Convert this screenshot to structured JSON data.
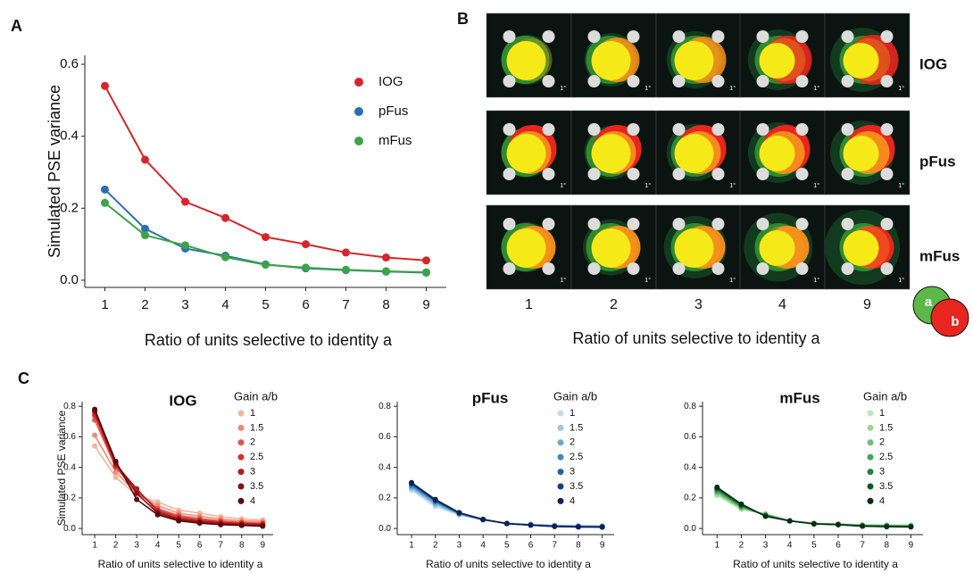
{
  "panels": {
    "a": "A",
    "b": "B",
    "c": "C"
  },
  "chart_data": [
    {
      "type": "line",
      "ylabel": "Simulated PSE variance",
      "xlabel": "Ratio of units selective to identity a",
      "x": [
        1,
        2,
        3,
        4,
        5,
        6,
        7,
        8,
        9
      ],
      "xlim": [
        0.5,
        9.5
      ],
      "xticks": [
        1,
        2,
        3,
        4,
        5,
        6,
        7,
        8,
        9
      ],
      "ylim": [
        -0.02,
        0.625
      ],
      "yticks": [
        {
          "value": 0,
          "label": "0.0"
        },
        0.2,
        0.4,
        0.6
      ],
      "series": [
        {
          "name": "IOG",
          "color": "#d7262b",
          "values": [
            0.54,
            0.335,
            0.218,
            0.173,
            0.12,
            0.1,
            0.077,
            0.063,
            0.055
          ]
        },
        {
          "name": "pFus",
          "color": "#2c6fb0",
          "values": [
            0.252,
            0.143,
            0.088,
            0.068,
            0.044,
            0.033,
            0.028,
            0.024,
            0.021
          ]
        },
        {
          "name": "mFus",
          "color": "#3ca346",
          "values": [
            0.215,
            0.125,
            0.097,
            0.064,
            0.043,
            0.035,
            0.029,
            0.025,
            0.022
          ]
        }
      ]
    },
    {
      "type": "line",
      "title": "IOG",
      "legend_title": "Gain a/b",
      "ylabel": "Simulated PSE variance",
      "xlabel": "Ratio of units selective to identity a",
      "x": [
        1,
        2,
        3,
        4,
        5,
        6,
        7,
        8,
        9
      ],
      "xlim": [
        0.4,
        9.5
      ],
      "xticks": [
        1,
        2,
        3,
        4,
        5,
        6,
        7,
        8,
        9
      ],
      "ylim": [
        -0.04,
        0.83
      ],
      "yticks": [
        {
          "value": 0,
          "label": "0.0"
        },
        0.2,
        0.4,
        0.6,
        0.8
      ],
      "series": [
        {
          "name": "1",
          "color": "#f6b49c",
          "values": [
            0.54,
            0.335,
            0.218,
            0.173,
            0.12,
            0.1,
            0.077,
            0.063,
            0.055
          ]
        },
        {
          "name": "1.5",
          "color": "#f08a74",
          "values": [
            0.61,
            0.37,
            0.23,
            0.15,
            0.1,
            0.08,
            0.062,
            0.05,
            0.045
          ]
        },
        {
          "name": "2",
          "color": "#e65548",
          "values": [
            0.71,
            0.4,
            0.24,
            0.13,
            0.085,
            0.065,
            0.05,
            0.04,
            0.035
          ]
        },
        {
          "name": "2.5",
          "color": "#d4302c",
          "values": [
            0.74,
            0.41,
            0.25,
            0.12,
            0.075,
            0.055,
            0.042,
            0.034,
            0.03
          ]
        },
        {
          "name": "3",
          "color": "#b01b1f",
          "values": [
            0.76,
            0.42,
            0.26,
            0.11,
            0.065,
            0.047,
            0.036,
            0.029,
            0.025
          ]
        },
        {
          "name": "3.5",
          "color": "#861016",
          "values": [
            0.77,
            0.43,
            0.23,
            0.1,
            0.058,
            0.04,
            0.03,
            0.024,
            0.02
          ]
        },
        {
          "name": "4",
          "color": "#5a0a10",
          "values": [
            0.78,
            0.44,
            0.19,
            0.09,
            0.05,
            0.035,
            0.025,
            0.02,
            0.015
          ]
        }
      ]
    },
    {
      "type": "line",
      "title": "pFus",
      "legend_title": "Gain a/b",
      "xlabel": "Ratio of units selective to identity a",
      "x": [
        1,
        2,
        3,
        4,
        5,
        6,
        7,
        8,
        9
      ],
      "xlim": [
        0.4,
        9.5
      ],
      "xticks": [
        1,
        2,
        3,
        4,
        5,
        6,
        7,
        8,
        9
      ],
      "ylim": [
        -0.04,
        0.83
      ],
      "yticks": [
        {
          "value": 0,
          "label": "0.0"
        },
        0.2,
        0.4,
        0.6,
        0.8
      ],
      "series": [
        {
          "name": "1",
          "color": "#c4daef",
          "values": [
            0.25,
            0.143,
            0.088,
            0.055,
            0.035,
            0.027,
            0.022,
            0.02,
            0.019
          ]
        },
        {
          "name": "1.5",
          "color": "#9dc6e2",
          "values": [
            0.26,
            0.155,
            0.092,
            0.056,
            0.034,
            0.026,
            0.02,
            0.017,
            0.016
          ]
        },
        {
          "name": "2",
          "color": "#6aa8d6",
          "values": [
            0.27,
            0.165,
            0.095,
            0.057,
            0.033,
            0.025,
            0.018,
            0.015,
            0.014
          ]
        },
        {
          "name": "2.5",
          "color": "#3f88c4",
          "values": [
            0.28,
            0.175,
            0.098,
            0.058,
            0.033,
            0.024,
            0.016,
            0.013,
            0.012
          ]
        },
        {
          "name": "3",
          "color": "#2166ac",
          "values": [
            0.29,
            0.18,
            0.1,
            0.059,
            0.032,
            0.023,
            0.015,
            0.012,
            0.011
          ]
        },
        {
          "name": "3.5",
          "color": "#143d82",
          "values": [
            0.295,
            0.185,
            0.102,
            0.06,
            0.032,
            0.022,
            0.014,
            0.011,
            0.01
          ]
        },
        {
          "name": "4",
          "color": "#0b2250",
          "values": [
            0.3,
            0.19,
            0.104,
            0.06,
            0.032,
            0.022,
            0.013,
            0.01,
            0.009
          ]
        }
      ]
    },
    {
      "type": "line",
      "title": "mFus",
      "legend_title": "Gain a/b",
      "xlabel": "Ratio of units selective to identity a",
      "x": [
        1,
        2,
        3,
        4,
        5,
        6,
        7,
        8,
        9
      ],
      "xlim": [
        0.4,
        9.5
      ],
      "xticks": [
        1,
        2,
        3,
        4,
        5,
        6,
        7,
        8,
        9
      ],
      "ylim": [
        -0.04,
        0.83
      ],
      "yticks": [
        {
          "value": 0,
          "label": "0.0"
        },
        0.2,
        0.4,
        0.6,
        0.8
      ],
      "series": [
        {
          "name": "1",
          "color": "#c4e6bd",
          "values": [
            0.215,
            0.125,
            0.097,
            0.05,
            0.035,
            0.03,
            0.025,
            0.024,
            0.022
          ]
        },
        {
          "name": "1.5",
          "color": "#9fd498",
          "values": [
            0.225,
            0.13,
            0.094,
            0.05,
            0.034,
            0.029,
            0.023,
            0.021,
            0.02
          ]
        },
        {
          "name": "2",
          "color": "#70bd72",
          "values": [
            0.235,
            0.137,
            0.091,
            0.05,
            0.033,
            0.028,
            0.021,
            0.019,
            0.018
          ]
        },
        {
          "name": "2.5",
          "color": "#41a65a",
          "values": [
            0.245,
            0.143,
            0.088,
            0.05,
            0.032,
            0.027,
            0.019,
            0.017,
            0.016
          ]
        },
        {
          "name": "3",
          "color": "#238443",
          "values": [
            0.255,
            0.15,
            0.085,
            0.05,
            0.031,
            0.026,
            0.018,
            0.015,
            0.014
          ]
        },
        {
          "name": "3.5",
          "color": "#0e5a2e",
          "values": [
            0.262,
            0.155,
            0.082,
            0.05,
            0.03,
            0.025,
            0.016,
            0.013,
            0.012
          ]
        },
        {
          "name": "4",
          "color": "#0a2d16",
          "values": [
            0.27,
            0.16,
            0.08,
            0.05,
            0.03,
            0.025,
            0.015,
            0.012,
            0.01
          ]
        }
      ]
    }
  ],
  "panel_b": {
    "columns": [
      "1",
      "2",
      "3",
      "4",
      "9"
    ],
    "rows": [
      "IOG",
      "pFus",
      "mFus"
    ],
    "xlabel": "Ratio of units selective to identity a",
    "scale_label": "1°",
    "venn": [
      "a",
      "b"
    ]
  }
}
